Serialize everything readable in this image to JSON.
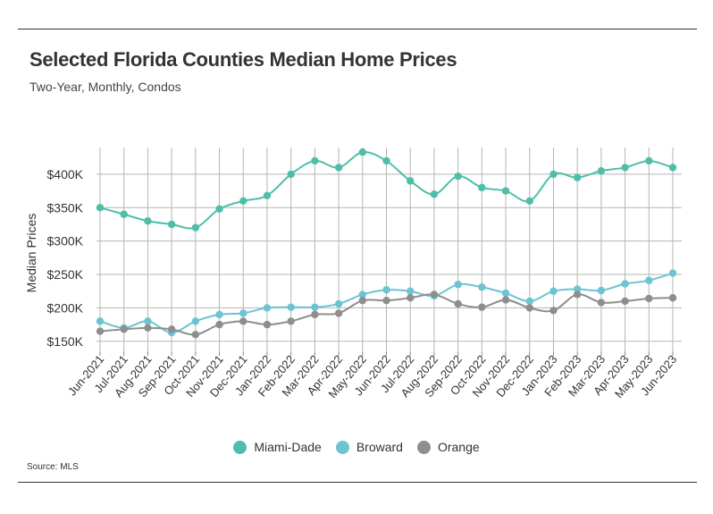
{
  "title": "Selected Florida Counties Median Home Prices",
  "subtitle": "Two-Year, Monthly, Condos",
  "source": "Source: MLS",
  "chart_data": {
    "type": "line",
    "title": "Selected Florida Counties Median Home Prices",
    "subtitle": "Two-Year, Monthly, Condos",
    "xlabel": "",
    "ylabel": "Median Prices",
    "ylim": [
      135000,
      440000
    ],
    "yticks": [
      150000,
      200000,
      250000,
      300000,
      350000,
      400000
    ],
    "ytick_labels": [
      "$150K",
      "$200K",
      "$250K",
      "$300K",
      "$350K",
      "$400K"
    ],
    "grid": true,
    "legend_position": "bottom",
    "categories": [
      "Jun-2021",
      "Jul-2021",
      "Aug-2021",
      "Sep-2021",
      "Oct-2021",
      "Nov-2021",
      "Dec-2021",
      "Jan-2022",
      "Feb-2022",
      "Mar-2022",
      "Apr-2022",
      "May-2022",
      "Jun-2022",
      "Jul-2022",
      "Aug-2022",
      "Sep-2022",
      "Oct-2022",
      "Nov-2022",
      "Dec-2022",
      "Jan-2023",
      "Feb-2023",
      "Mar-2023",
      "Apr-2023",
      "May-2023",
      "Jun-2023"
    ],
    "series": [
      {
        "name": "Miami-Dade",
        "color": "#4dbfa8",
        "values": [
          350000,
          340000,
          330000,
          325000,
          320000,
          348000,
          360000,
          368000,
          400000,
          420000,
          410000,
          433000,
          420000,
          390000,
          370000,
          397000,
          380000,
          375000,
          360000,
          400000,
          395000,
          405000,
          410000,
          420000,
          410000
        ]
      },
      {
        "name": "Broward",
        "color": "#6cc4d3",
        "values": [
          180000,
          170000,
          180000,
          163000,
          180000,
          190000,
          192000,
          200000,
          201000,
          201000,
          206000,
          220000,
          227000,
          225000,
          218000,
          235000,
          231000,
          222000,
          210000,
          225000,
          228000,
          226000,
          236000,
          241000,
          252000
        ]
      },
      {
        "name": "Orange",
        "color": "#8e8e8e",
        "values": [
          165000,
          168000,
          170000,
          168000,
          160000,
          175000,
          180000,
          175000,
          180000,
          190000,
          192000,
          211000,
          211000,
          215000,
          220000,
          206000,
          201000,
          212000,
          200000,
          196000,
          220000,
          208000,
          210000,
          214000,
          215000
        ]
      }
    ]
  }
}
